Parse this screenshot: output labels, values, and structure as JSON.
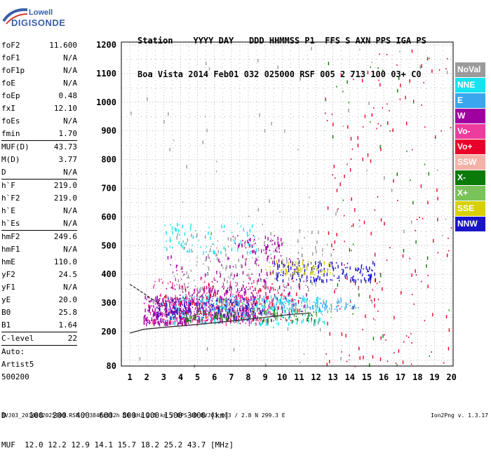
{
  "logo": {
    "brand": "Lowell",
    "product": "DIGISONDE"
  },
  "header": {
    "line1": "Station    YYYY DAY   DDD HHMMSS P1  FFS S AXN PPS IGA PS",
    "line2": "Boa Vista 2014 Feb01 032 025000 RSF 005 2 713 100 03+ C0"
  },
  "params": [
    {
      "k": "foF2",
      "v": "11.600"
    },
    {
      "k": "foF1",
      "v": "N/A"
    },
    {
      "k": "foF1p",
      "v": "N/A"
    },
    {
      "k": "foE",
      "v": "N/A"
    },
    {
      "k": "foEp",
      "v": "0.48"
    },
    {
      "k": "fxI",
      "v": "12.10"
    },
    {
      "k": "foEs",
      "v": "N/A"
    },
    {
      "k": "fmin",
      "v": "1.70"
    },
    {
      "sep": true
    },
    {
      "k": "MUF(D)",
      "v": "43.73"
    },
    {
      "k": "M(D)",
      "v": "3.77"
    },
    {
      "k": "D",
      "v": "N/A"
    },
    {
      "sep": true
    },
    {
      "k": "h`F",
      "v": "219.0"
    },
    {
      "k": "h`F2",
      "v": "219.0"
    },
    {
      "k": "h`E",
      "v": "N/A"
    },
    {
      "k": "h`Es",
      "v": "N/A"
    },
    {
      "sep": true
    },
    {
      "k": "hmF2",
      "v": "249.6"
    },
    {
      "k": "hmF1",
      "v": "N/A"
    },
    {
      "k": "hmE",
      "v": "110.0"
    },
    {
      "k": "yF2",
      "v": "24.5"
    },
    {
      "k": "yF1",
      "v": "N/A"
    },
    {
      "k": "yE",
      "v": "20.0"
    },
    {
      "k": "B0",
      "v": "25.8"
    },
    {
      "k": "B1",
      "v": "1.64"
    },
    {
      "sep": true
    },
    {
      "k": "C-level",
      "v": "22"
    },
    {
      "sep": true
    },
    {
      "k": "Auto:",
      "v": ""
    },
    {
      "k": "Artist5",
      "v": ""
    },
    {
      "k": "500200",
      "v": ""
    }
  ],
  "legend": [
    {
      "label": "NoVal",
      "color": "#9a9a9a"
    },
    {
      "label": "NNE",
      "color": "#17e3f0"
    },
    {
      "label": "E",
      "color": "#3aa6ee"
    },
    {
      "label": "W",
      "color": "#a000a0"
    },
    {
      "label": "Vo-",
      "color": "#ee3c9e"
    },
    {
      "label": "Vo+",
      "color": "#e8002a"
    },
    {
      "label": "SSW",
      "color": "#f4b1a8"
    },
    {
      "label": "X-",
      "color": "#0a7a0a"
    },
    {
      "label": "X+",
      "color": "#7ac25a"
    },
    {
      "label": "SSE",
      "color": "#d8d000"
    },
    {
      "label": "NNW",
      "color": "#1a14c8"
    }
  ],
  "footer": {
    "line1": "D     100  200  400  600  800 1000 1500 3000 [km]",
    "line2": "MUF  12.0 12.2 12.9 14.1 15.7 18.2 25.2 43.7 [MHz]",
    "line3": "BVJ03_2014032025000.RSF / 384fx512h 50 kHz 2.5 km / DPS-4D BVJ03 003 / 2.8 N 299.3 E",
    "version": "Ion2Png v. 1.3.17"
  },
  "chart_data": {
    "type": "scatter",
    "xlim": [
      0.5,
      20.1
    ],
    "ylim": [
      80,
      1210
    ],
    "x_ticks": [
      "1",
      "2",
      "3",
      "4",
      "5",
      "6",
      "7",
      "8",
      "9",
      "10",
      "11",
      "12",
      "13",
      "14",
      "15",
      "16",
      "17",
      "18",
      "19",
      "20"
    ],
    "y_ticks": [
      "80",
      "200",
      "300",
      "400",
      "500",
      "600",
      "700",
      "800",
      "900",
      "1000",
      "1100",
      "1200"
    ],
    "grid": true,
    "legend_position": "right",
    "curves": [
      {
        "name": "",
        "x": [
          1.0,
          1.8,
          3,
          5,
          7,
          9,
          10.5,
          11.7
        ],
        "y": [
          195,
          208,
          215,
          225,
          237,
          250,
          260,
          265
        ]
      },
      {
        "name": "",
        "x": [
          1.0,
          1.4,
          1.9,
          2.4,
          3.0
        ],
        "y": [
          365,
          350,
          330,
          310,
          290
        ]
      }
    ],
    "clusters": [
      {
        "color": "#a000a0",
        "x": [
          1.8,
          4.5
        ],
        "y": [
          230,
          330
        ],
        "n": 260
      },
      {
        "color": "#a000a0",
        "x": [
          4.5,
          8.5
        ],
        "y": [
          240,
          360
        ],
        "n": 260
      },
      {
        "color": "#a000a0",
        "x": [
          3.0,
          11.5
        ],
        "y": [
          260,
          470
        ],
        "n": 200
      },
      {
        "color": "#17e3f0",
        "x": [
          2.8,
          12.5
        ],
        "y": [
          230,
          330
        ],
        "n": 220
      },
      {
        "color": "#3aa6ee",
        "x": [
          5.0,
          14.5
        ],
        "y": [
          280,
          320
        ],
        "n": 180
      },
      {
        "color": "#ee3c9e",
        "x": [
          2.0,
          9.5
        ],
        "y": [
          230,
          390
        ],
        "n": 200
      },
      {
        "color": "#e8002a",
        "x": [
          3.0,
          11.0
        ],
        "y": [
          240,
          380
        ],
        "n": 120
      },
      {
        "color": "#1a14c8",
        "x": [
          9.5,
          15.5
        ],
        "y": [
          380,
          450
        ],
        "n": 160
      },
      {
        "color": "#1a14c8",
        "x": [
          2.5,
          9.0
        ],
        "y": [
          250,
          320
        ],
        "n": 120
      },
      {
        "color": "#0a7a0a",
        "x": [
          4.0,
          12.0
        ],
        "y": [
          240,
          280
        ],
        "n": 90
      },
      {
        "color": "#7ac25a",
        "x": [
          6.0,
          13.0
        ],
        "y": [
          250,
          320
        ],
        "n": 70
      },
      {
        "color": "#d8d000",
        "x": [
          9.0,
          13.0
        ],
        "y": [
          400,
          450
        ],
        "n": 60
      },
      {
        "color": "#17e3f0",
        "x": [
          3.0,
          8.5
        ],
        "y": [
          480,
          580
        ],
        "n": 80
      },
      {
        "color": "#a000a0",
        "x": [
          7.0,
          10.0
        ],
        "y": [
          480,
          540
        ],
        "n": 60
      },
      {
        "color": "#9a9a9a",
        "x": [
          3.5,
          12.5
        ],
        "y": [
          350,
          560
        ],
        "n": 160
      },
      {
        "color": "#e8002a",
        "x": [
          12.5,
          20.0
        ],
        "y": [
          80,
          1200
        ],
        "n": 180
      },
      {
        "color": "#0a7a0a",
        "x": [
          12.5,
          20.0
        ],
        "y": [
          80,
          1200
        ],
        "n": 40
      },
      {
        "color": "#9a9a9a",
        "x": [
          1.0,
          20.0
        ],
        "y": [
          80,
          1200
        ],
        "n": 80
      }
    ]
  }
}
